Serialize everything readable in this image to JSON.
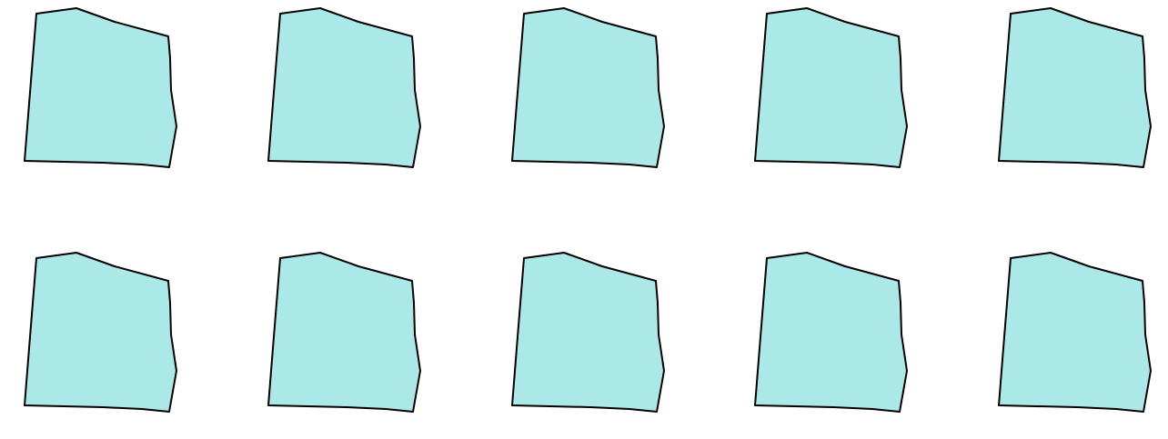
{
  "canvas": {
    "background": "#ffffff"
  },
  "shapes": {
    "style": {
      "fill": "#abe8e8",
      "stroke": "#000000"
    },
    "icon": "pentagon-tile-icon",
    "rows": 2,
    "columns": 5,
    "count": 10
  }
}
